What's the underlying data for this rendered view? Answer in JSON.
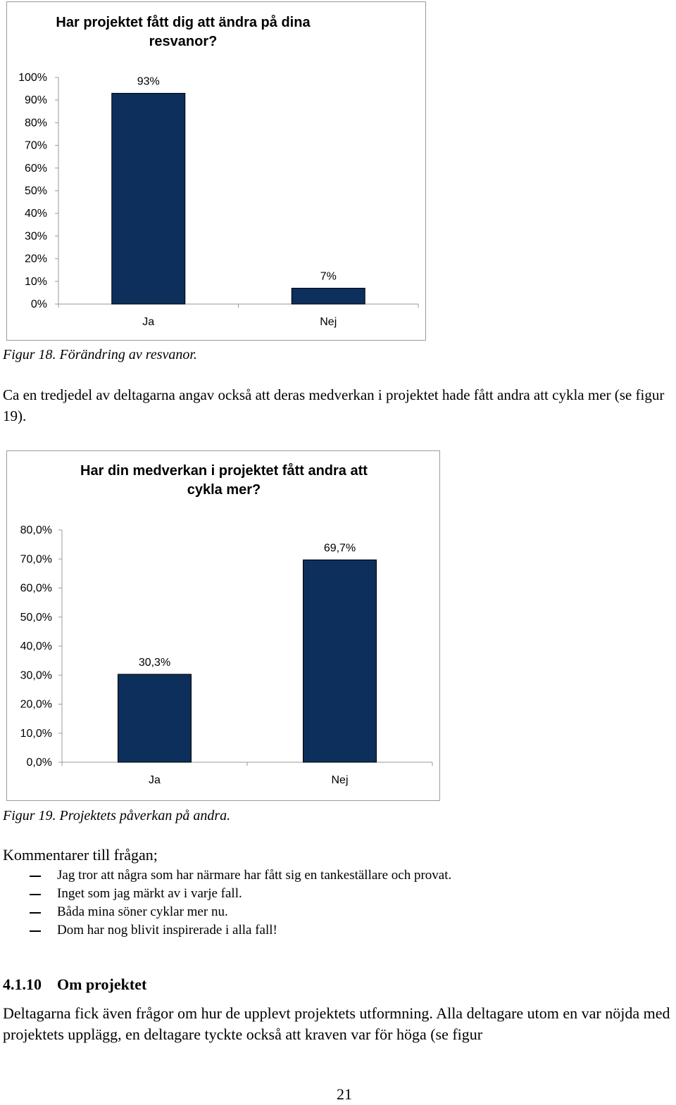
{
  "chart_data": [
    {
      "type": "bar",
      "title": "Har projektet fått dig att ändra på dina resvanor?",
      "categories": [
        "Ja",
        "Nej"
      ],
      "values": [
        93,
        7
      ],
      "data_labels": [
        "93%",
        "7%"
      ],
      "ylim": [
        0,
        100
      ],
      "yticks": [
        0,
        10,
        20,
        30,
        40,
        50,
        60,
        70,
        80,
        90,
        100
      ],
      "ytick_labels": [
        "0%",
        "10%",
        "20%",
        "30%",
        "40%",
        "50%",
        "60%",
        "70%",
        "80%",
        "90%",
        "100%"
      ],
      "grid": false,
      "bar_color": "#0c2f5c"
    },
    {
      "type": "bar",
      "title": "Har din medverkan i projektet fått andra att cykla mer?",
      "categories": [
        "Ja",
        "Nej"
      ],
      "values": [
        30.3,
        69.7
      ],
      "data_labels": [
        "30,3%",
        "69,7%"
      ],
      "ylim": [
        0,
        80
      ],
      "yticks": [
        0,
        10,
        20,
        30,
        40,
        50,
        60,
        70,
        80
      ],
      "ytick_labels": [
        "0,0%",
        "10,0%",
        "20,0%",
        "30,0%",
        "40,0%",
        "50,0%",
        "60,0%",
        "70,0%",
        "80,0%"
      ],
      "grid": false,
      "bar_color": "#0c2f5c"
    }
  ],
  "captions": {
    "fig18": "Figur 18. Förändring av resvanor.",
    "fig19": "Figur 19. Projektets påverkan på andra."
  },
  "text": {
    "para1": "Ca en tredjedel av deltagarna angav också att deras medverkan i projektet hade fått andra att cykla mer (se figur 19).",
    "comments_intro": "Kommentarer till frågan;",
    "comments": [
      "Jag tror att några som har närmare har fått sig en tankeställare och provat.",
      "Inget som jag märkt av i varje fall.",
      "Båda mina söner cyklar mer nu.",
      "Dom har nog blivit inspirerade i alla fall!"
    ],
    "section_number": "4.1.10",
    "section_title": "Om projektet",
    "para2": "Deltagarna fick även frågor om hur de upplevt projektets utformning. Alla deltagare utom en var nöjda med projektets upplägg, en deltagare tyckte också att kraven var för höga (se figur",
    "page_number": "21"
  }
}
